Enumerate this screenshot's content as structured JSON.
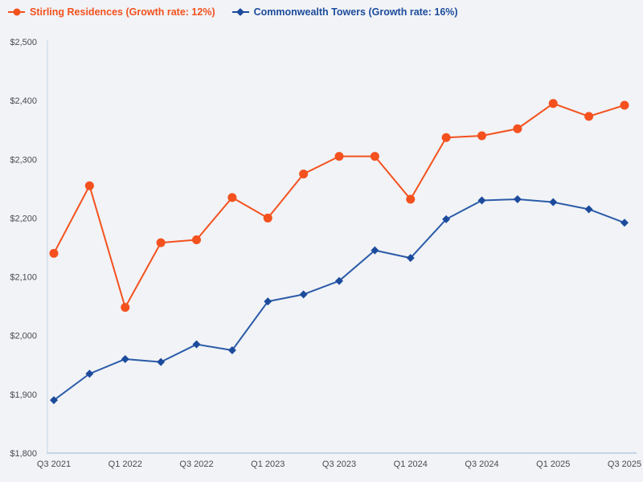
{
  "chart_data": {
    "type": "line",
    "x": [
      "Q3 2021",
      "Q4 2021",
      "Q1 2022",
      "Q2 2022",
      "Q3 2022",
      "Q4 2022",
      "Q1 2023",
      "Q2 2023",
      "Q3 2023",
      "Q4 2023",
      "Q1 2024",
      "Q2 2024",
      "Q3 2024",
      "Q4 2024",
      "Q1 2025",
      "Q2 2025",
      "Q3 2025"
    ],
    "x_ticks_shown": [
      "Q3 2021",
      "Q1 2022",
      "Q3 2022",
      "Q1 2023",
      "Q3 2023",
      "Q1 2024",
      "Q3 2024",
      "Q1 2025",
      "Q3 2025"
    ],
    "x_tick_step": 2,
    "series": [
      {
        "name": "Stirling Residences (Growth rate: 12%)",
        "marker": "circle",
        "line_color": "#F4511E",
        "marker_color": "#F4511E",
        "values": [
          2140,
          2255,
          2048,
          2158,
          2163,
          2235,
          2200,
          2275,
          2305,
          2305,
          2232,
          2337,
          2340,
          2352,
          2395,
          2373,
          2392
        ]
      },
      {
        "name": "Commonwealth Towers (Growth rate: 16%)",
        "marker": "diamond",
        "line_color": "#2B5BA9",
        "marker_color": "#1C4B9C",
        "values": [
          1890,
          1935,
          1960,
          1955,
          1985,
          1975,
          2058,
          2070,
          2093,
          2145,
          2132,
          2198,
          2230,
          2232,
          2227,
          2215,
          2192
        ]
      }
    ],
    "title": "",
    "xlabel": "",
    "ylabel": "",
    "ylim": [
      1800,
      2500
    ],
    "y_ticks": [
      1800,
      1900,
      2000,
      2100,
      2200,
      2300,
      2400,
      2500
    ],
    "y_tick_prefix": "$",
    "grid": false,
    "legend_position": "top-left"
  },
  "colors": {
    "background": "#F1F3F6",
    "axis_line": "#C6D4E7",
    "tick_label": "#4A4A55"
  }
}
